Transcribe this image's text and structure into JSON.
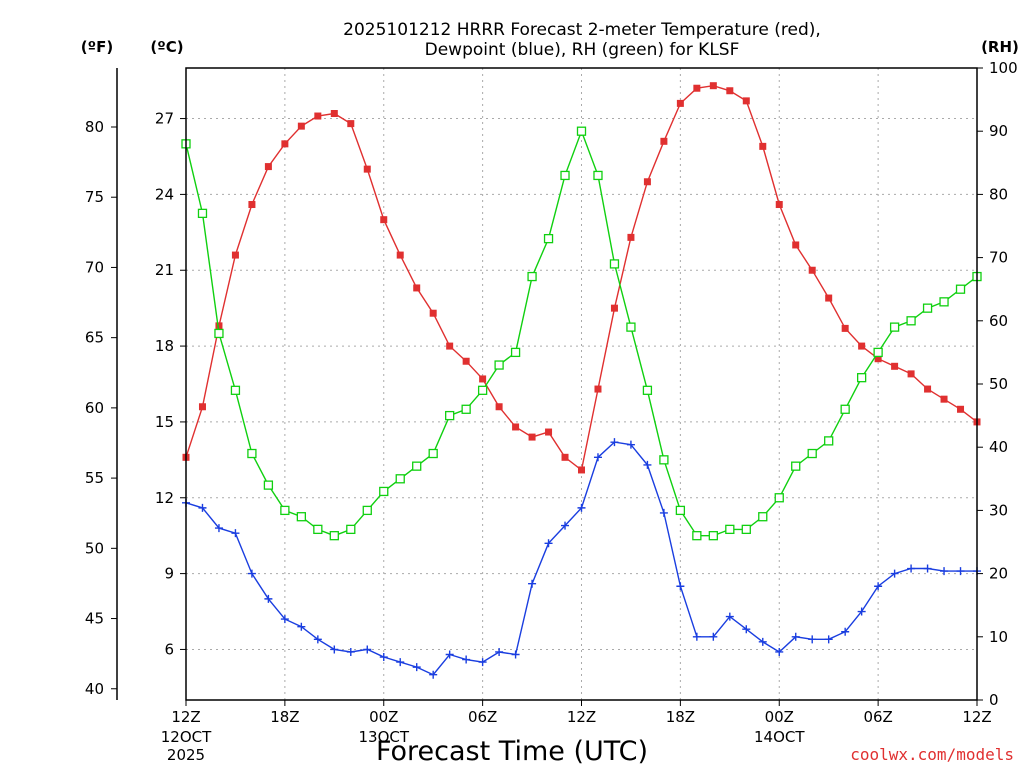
{
  "chart_data": {
    "type": "line",
    "title_line1": "2025101212 HRRR Forecast 2-meter Temperature (red),",
    "title_line2": "Dewpoint (blue), RH (green) for KLSF",
    "left_outer_unit": "(ºF)",
    "left_inner_unit": "(ºC)",
    "right_unit": "(RH)",
    "xlabel": "Forecast Time (UTC)",
    "credit": "coolwx.com/models",
    "x_hours_range": [
      0,
      48
    ],
    "x_ticks": [
      {
        "hour": 0,
        "label": "12Z",
        "date1": "12OCT",
        "date2": "2025"
      },
      {
        "hour": 6,
        "label": "18Z",
        "date1": "",
        "date2": ""
      },
      {
        "hour": 12,
        "label": "00Z",
        "date1": "13OCT",
        "date2": ""
      },
      {
        "hour": 18,
        "label": "06Z",
        "date1": "",
        "date2": ""
      },
      {
        "hour": 24,
        "label": "12Z",
        "date1": "",
        "date2": ""
      },
      {
        "hour": 30,
        "label": "18Z",
        "date1": "",
        "date2": ""
      },
      {
        "hour": 36,
        "label": "00Z",
        "date1": "14OCT",
        "date2": ""
      },
      {
        "hour": 42,
        "label": "06Z",
        "date1": "",
        "date2": ""
      },
      {
        "hour": 48,
        "label": "12Z",
        "date1": "",
        "date2": ""
      }
    ],
    "celsius_range": [
      4,
      29
    ],
    "celsius_ticks": [
      6,
      9,
      12,
      15,
      18,
      21,
      24,
      27
    ],
    "fahrenheit_range": [
      39.2,
      84.2
    ],
    "fahrenheit_ticks": [
      40,
      45,
      50,
      55,
      60,
      65,
      70,
      75,
      80
    ],
    "rh_range": [
      0,
      100
    ],
    "rh_ticks": [
      0,
      10,
      20,
      30,
      40,
      50,
      60,
      70,
      80,
      90,
      100
    ],
    "colors": {
      "temperature": "#e03030",
      "dewpoint": "#1a3ee0",
      "rh": "#10d010",
      "grid": "#aaaaaa"
    },
    "series": [
      {
        "name": "Temperature",
        "axis": "celsius",
        "marker": "filled-square",
        "values": [
          13.6,
          15.6,
          18.8,
          21.6,
          23.6,
          25.1,
          26.0,
          26.7,
          27.1,
          27.2,
          26.8,
          25.0,
          23.0,
          21.6,
          20.3,
          19.3,
          18.0,
          17.4,
          16.7,
          15.6,
          14.8,
          14.4,
          14.6,
          13.6,
          13.1,
          16.3,
          19.5,
          22.3,
          24.5,
          26.1,
          27.6,
          28.2,
          28.3,
          28.1,
          27.7,
          25.9,
          23.6,
          22.0,
          21.0,
          19.9,
          18.7,
          18.0,
          17.5,
          17.2,
          16.9,
          16.3,
          15.9,
          15.5,
          15.0
        ]
      },
      {
        "name": "Dewpoint",
        "axis": "celsius",
        "marker": "plus",
        "values": [
          11.8,
          11.6,
          10.8,
          10.6,
          9.0,
          8.0,
          7.2,
          6.9,
          6.4,
          6.0,
          5.9,
          6.0,
          5.7,
          5.5,
          5.3,
          5.0,
          5.8,
          5.6,
          5.5,
          5.9,
          5.8,
          8.6,
          10.2,
          10.9,
          11.6,
          13.6,
          14.2,
          14.1,
          13.3,
          11.4,
          8.5,
          6.5,
          6.5,
          7.3,
          6.8,
          6.3,
          5.9,
          6.5,
          6.4,
          6.4,
          6.7,
          7.5,
          8.5,
          9.0,
          9.2,
          9.2,
          9.1,
          9.1,
          9.1
        ]
      },
      {
        "name": "RH",
        "axis": "rh",
        "marker": "open-square",
        "values": [
          88,
          77,
          58,
          49,
          39,
          34,
          30,
          29,
          27,
          26,
          27,
          30,
          33,
          35,
          37,
          39,
          45,
          46,
          49,
          53,
          55,
          67,
          73,
          83,
          90,
          83,
          69,
          59,
          49,
          38,
          30,
          26,
          26,
          27,
          27,
          29,
          32,
          37,
          39,
          41,
          46,
          51,
          55,
          59,
          60,
          62,
          63,
          65,
          67
        ]
      }
    ]
  }
}
